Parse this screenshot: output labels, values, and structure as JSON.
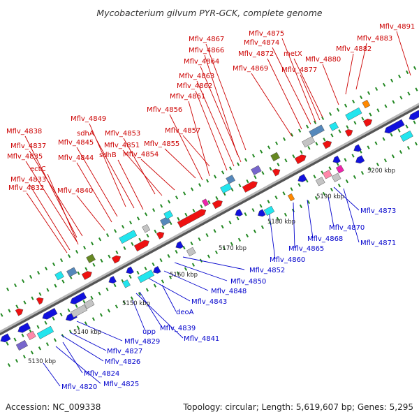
{
  "title": "Mycobacterium gilvum PYR-GCK, complete genome",
  "footer": {
    "accession": "Accession: NC_009338",
    "summary": "Topology: circular; Length: 5,619,607 bp; Genes: 5,295"
  },
  "colors": {
    "forward_label": "#cc0000",
    "reverse_label": "#0000cc",
    "cds_forward": "#ee1111",
    "cds_reverse": "#1111dd",
    "backbone": "#999999",
    "tick": "#228822",
    "feature_cyan": "#22e5ee",
    "feature_blue": "#5588bb",
    "feature_gray": "#c4c4c4",
    "feature_olive": "#668822",
    "feature_orange": "#ff8800",
    "feature_pink": "#ff88aa",
    "feature_magenta": "#ee22aa",
    "feature_purple": "#7766cc"
  },
  "scale_labels": [
    "5130 kbp",
    "5140 kbp",
    "5150 kbp",
    "5160 kbp",
    "5170 kbp",
    "5180 kbp",
    "5190 kbp",
    "5200 kbp"
  ],
  "forward_labels": [
    "Mflv_4891",
    "Mflv_4875",
    "Mflv_4883",
    "Mflv_4867",
    "Mflv_4874",
    "Mflv_4882",
    "Mflv_4866",
    "Mflv_4872",
    "metX",
    "Mflv_4880",
    "Mflv_4864",
    "Mflv_4869",
    "Mflv_4877",
    "Mflv_4863",
    "Mflv_4862",
    "Mflv_4861",
    "Mflv_4856",
    "Mflv_4849",
    "Mflv_4838",
    "sdhA",
    "Mflv_4853",
    "Mflv_4857",
    "Mflv_4845",
    "Mflv_4851",
    "Mflv_4855",
    "Mflv_4837",
    "sdhB",
    "Mflv_4854",
    "Mflv_4835",
    "Mflv_4844",
    "ectC",
    "Mflv_4833",
    "Mflv_4832",
    "Mflv_4840"
  ],
  "reverse_labels": [
    "Mflv_4873",
    "Mflv_4870",
    "Mflv_4868",
    "Mflv_4871",
    "Mflv_4865",
    "Mflv_4860",
    "Mflv_4852",
    "Mflv_4850",
    "Mflv_4848",
    "Mflv_4843",
    "deoA",
    "Mflv_4839",
    "upp",
    "Mflv_4841",
    "Mflv_4829",
    "Mflv_4827",
    "Mflv_4826",
    "Mflv_4824",
    "Mflv_4825",
    "Mflv_4820"
  ]
}
